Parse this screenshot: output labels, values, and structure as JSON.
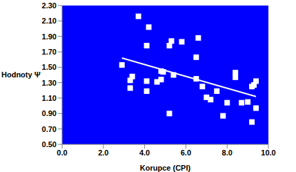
{
  "chart_data": {
    "type": "scatter",
    "x_label": "Korupce (CPI)",
    "y_label": "Hodnoty Ψ",
    "xlim": [
      0,
      10
    ],
    "xticks": [
      {
        "value": 0,
        "label": "0.0"
      },
      {
        "value": 2,
        "label": "2.0"
      },
      {
        "value": 4,
        "label": "4.0"
      },
      {
        "value": 6,
        "label": "6.0"
      },
      {
        "value": 8,
        "label": "8.0"
      },
      {
        "value": 10,
        "label": "10.0"
      }
    ],
    "ylim": [
      0.5,
      2.3
    ],
    "yticks": [
      {
        "value": 0.5,
        "label": "0.50"
      },
      {
        "value": 0.7,
        "label": "0.70"
      },
      {
        "value": 0.9,
        "label": "0.90"
      },
      {
        "value": 1.1,
        "label": "1.10"
      },
      {
        "value": 1.3,
        "label": "1.30"
      },
      {
        "value": 1.5,
        "label": "1.50"
      },
      {
        "value": 1.7,
        "label": "1.70"
      },
      {
        "value": 1.9,
        "label": "1.90"
      },
      {
        "value": 2.1,
        "label": "2.10"
      },
      {
        "value": 2.3,
        "label": "2.30"
      }
    ],
    "grid": false,
    "series": [
      {
        "type": "scatter",
        "color": "#ffffff",
        "marker": "square",
        "x": [
          2.9,
          3.3,
          3.3,
          3.4,
          3.7,
          4.1,
          4.1,
          4.1,
          4.2,
          4.6,
          4.8,
          4.8,
          4.9,
          5.2,
          5.2,
          5.3,
          5.4,
          5.8,
          6.5,
          6.5,
          6.6,
          6.8,
          7.0,
          7.2,
          7.5,
          7.8,
          8.0,
          8.4,
          8.4,
          8.7,
          9.0,
          9.2,
          9.2,
          9.3,
          9.4,
          9.4
        ],
        "values": [
          1.53,
          1.33,
          1.23,
          1.38,
          2.16,
          1.78,
          1.32,
          1.19,
          2.02,
          1.31,
          1.45,
          1.34,
          1.44,
          1.78,
          0.9,
          1.84,
          1.4,
          1.83,
          1.63,
          1.35,
          1.88,
          1.25,
          1.11,
          1.08,
          1.19,
          0.87,
          1.04,
          1.43,
          1.37,
          1.04,
          1.05,
          1.25,
          0.79,
          1.27,
          0.97,
          1.32
        ]
      },
      {
        "type": "line",
        "color": "#ffffff",
        "x": [
          2.9,
          9.4
        ],
        "values": [
          1.62,
          1.12
        ]
      }
    ]
  }
}
